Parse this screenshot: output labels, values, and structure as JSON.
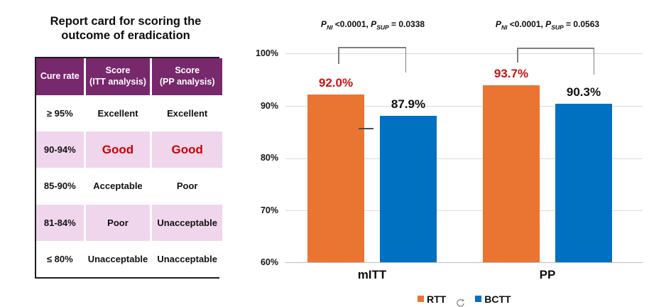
{
  "report_card": {
    "title_line1": "Report card for scoring the",
    "title_line2": "outcome of eradication",
    "headers": [
      {
        "line1": "Cure rate",
        "line2": ""
      },
      {
        "line1": "Score",
        "line2": "(ITT analysis)"
      },
      {
        "line1": "Score",
        "line2": "(PP analysis)"
      }
    ],
    "rows": [
      {
        "cure": "≥ 95%",
        "itt": "Excellent",
        "pp": "Excellent"
      },
      {
        "cure": "90-94%",
        "itt": "Good",
        "pp": "Good"
      },
      {
        "cure": "85-90%",
        "itt": "Acceptable",
        "pp": "Poor"
      },
      {
        "cure": "81-84%",
        "itt": "Poor",
        "pp": "Unacceptable"
      },
      {
        "cure": "≤ 80%",
        "itt": "Unacceptable",
        "pp": "Unacceptable"
      }
    ],
    "colors": {
      "header_bg": "#78286C",
      "row_highlight": "#F0D6EC",
      "good_text": "#CC0000"
    }
  },
  "chart_data": {
    "type": "bar",
    "categories": [
      "mITT",
      "PP"
    ],
    "series": [
      {
        "name": "RTT",
        "color": "#EA7431",
        "label_color": "#CC1111",
        "values": [
          92.0,
          93.7
        ],
        "labels": [
          "92.0%",
          "93.7%"
        ]
      },
      {
        "name": "BCTT",
        "color": "#0070C0",
        "label_color": "#111111",
        "values": [
          87.9,
          90.3
        ],
        "labels": [
          "87.9%",
          "90.3%"
        ]
      }
    ],
    "ylim": [
      60,
      100
    ],
    "ytick_labels": [
      "100%",
      "90%",
      "80%",
      "70%",
      "60%"
    ],
    "grid": true,
    "legend_position": "bottom",
    "annotations": [
      {
        "p1": "P",
        "sub1": "NI",
        "val1": "<0.0001,",
        "p2": "P",
        "sub2": "SUP",
        "val2": "= 0.0338"
      },
      {
        "p1": "P",
        "sub1": "NI",
        "val1": "<0.0001,",
        "p2": "P",
        "sub2": "SUP",
        "val2": "= 0.0563"
      }
    ]
  }
}
